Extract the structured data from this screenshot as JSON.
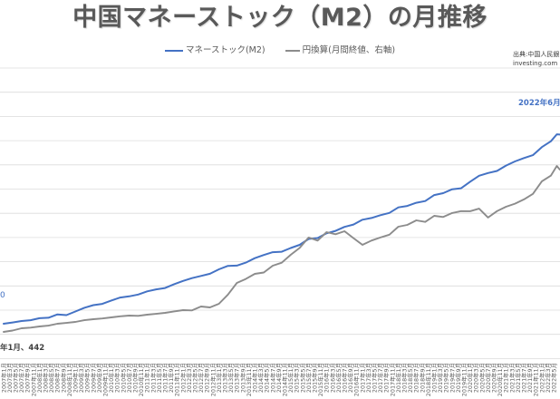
{
  "colors": {
    "m2_line": "#4472c4",
    "yen_line": "#8c8c8c",
    "gridline": "#dcdcdc",
    "title_text": "#595959",
    "axis_text": "#595959"
  },
  "source": {
    "line1": "出典:中国人民銀",
    "line2": "investing.com"
  },
  "chart_data": {
    "type": "line",
    "title": "中国マネーストック（M2）の月推移",
    "grid": true,
    "legend_position": "top-center",
    "y_left_range": [
      0,
      350
    ],
    "y_right_range": [
      0,
      6050
    ],
    "annotations": {
      "m2_latest": "2022年6月、",
      "yen_start": "年1月、442",
      "m2_start": "0"
    },
    "x_tick_labels": [
      "2007年1月",
      "2007年3月",
      "2007年5月",
      "2007年7月",
      "2007年9月",
      "2007年11月",
      "2008年1月",
      "2008年3月",
      "2008年5月",
      "2008年7月",
      "2008年9月",
      "2008年11月",
      "2009年1月",
      "2009年3月",
      "2009年5月",
      "2009年7月",
      "2009年9月",
      "2009年11月",
      "2010年1月",
      "2010年3月",
      "2010年5月",
      "2010年7月",
      "2010年9月",
      "2010年11月",
      "2011年1月",
      "2011年3月",
      "2011年5月",
      "2011年7月",
      "2011年9月",
      "2011年11月",
      "2012年1月",
      "2012年3月",
      "2012年5月",
      "2012年7月",
      "2012年9月",
      "2012年11月",
      "2013年1月",
      "2013年3月",
      "2013年5月",
      "2013年7月",
      "2013年9月",
      "2013年11月",
      "2014年1月",
      "2014年3月",
      "2014年5月",
      "2014年7月",
      "2014年9月",
      "2014年11月",
      "2015年1月",
      "2015年3月",
      "2015年5月",
      "2015年7月",
      "2015年9月",
      "2015年11月",
      "2016年1月",
      "2016年3月",
      "2016年5月",
      "2016年7月",
      "2016年9月",
      "2016年11月",
      "2017年1月",
      "2017年3月",
      "2017年5月",
      "2017年7月",
      "2017年9月",
      "2017年11月",
      "2018年1月",
      "2018年3月",
      "2018年5月",
      "2018年7月",
      "2018年9月",
      "2018年11月",
      "2019年1月",
      "2019年3月",
      "2019年5月",
      "2019年7月",
      "2019年9月",
      "2019年11月",
      "2020年1月",
      "2020年3月",
      "2020年5月",
      "2020年7月",
      "2020年9月",
      "2020年11月",
      "2021年1月",
      "2021年3月",
      "2021年5月",
      "2021年7月",
      "2021年9月",
      "2021年11月",
      "2022年1月",
      "2022年3月",
      "2022年5月"
    ],
    "x": [
      "2007年1月",
      "2007年4月",
      "2007年7月",
      "2007年10月",
      "2008年1月",
      "2008年4月",
      "2008年7月",
      "2008年10月",
      "2009年1月",
      "2009年4月",
      "2009年7月",
      "2009年10月",
      "2010年1月",
      "2010年4月",
      "2010年7月",
      "2010年10月",
      "2011年1月",
      "2011年4月",
      "2011年7月",
      "2011年10月",
      "2012年1月",
      "2012年4月",
      "2012年7月",
      "2012年10月",
      "2013年1月",
      "2013年4月",
      "2013年7月",
      "2013年10月",
      "2014年1月",
      "2014年4月",
      "2014年7月",
      "2014年10月",
      "2015年1月",
      "2015年4月",
      "2015年7月",
      "2015年10月",
      "2016年1月",
      "2016年4月",
      "2016年7月",
      "2016年10月",
      "2017年1月",
      "2017年4月",
      "2017年7月",
      "2017年10月",
      "2018年1月",
      "2018年4月",
      "2018年7月",
      "2018年10月",
      "2019年1月",
      "2019年4月",
      "2019年7月",
      "2019年10月",
      "2020年1月",
      "2020年4月",
      "2020年7月",
      "2020年10月",
      "2021年1月",
      "2021年4月",
      "2021年7月",
      "2021年10月",
      "2022年1月",
      "2022年4月",
      "2022年6月",
      "2022年7月"
    ],
    "series": [
      {
        "name": "マネーストック(M2)",
        "axis": "left",
        "color": "#4472c4",
        "values": [
          35.2,
          36.7,
          38.4,
          39.4,
          41.7,
          42.3,
          46.2,
          45.3,
          49.6,
          54.0,
          57.1,
          58.6,
          62.5,
          66.0,
          67.4,
          69.6,
          73.3,
          75.7,
          77.3,
          81.7,
          85.6,
          88.9,
          91.5,
          94.0,
          99.2,
          103.3,
          103.6,
          107.1,
          112.4,
          116.1,
          119.4,
          119.9,
          124.3,
          128.1,
          135.0,
          136.1,
          141.6,
          144.5,
          149.2,
          151.9,
          157.6,
          159.6,
          162.9,
          165.6,
          172.1,
          173.8,
          177.6,
          179.6,
          186.6,
          188.9,
          193.5,
          194.6,
          202.3,
          209.4,
          212.6,
          215.0,
          221.3,
          226.2,
          230.2,
          233.6,
          243.1,
          249.9,
          258.1,
          257.8
        ]
      },
      {
        "name": "円換算(月間終値、右軸)",
        "axis": "right",
        "color": "#8c8c8c",
        "values": [
          442,
          470,
          517,
          530,
          553,
          570,
          609,
          625,
          646,
          680,
          701,
          715,
          738,
          760,
          775,
          770,
          793,
          810,
          830,
          860,
          886,
          880,
          959,
          940,
          1015,
          1200,
          1439,
          1520,
          1624,
          1650,
          1790,
          1850,
          2011,
          2150,
          2362,
          2300,
          2472,
          2430,
          2491,
          2350,
          2214,
          2300,
          2362,
          2420,
          2583,
          2620,
          2712,
          2680,
          2804,
          2780,
          2860,
          2900,
          2897,
          2950,
          2768,
          2900,
          2989,
          3050,
          3137,
          3250,
          3506,
          3620,
          3819,
          3745
        ]
      }
    ]
  }
}
